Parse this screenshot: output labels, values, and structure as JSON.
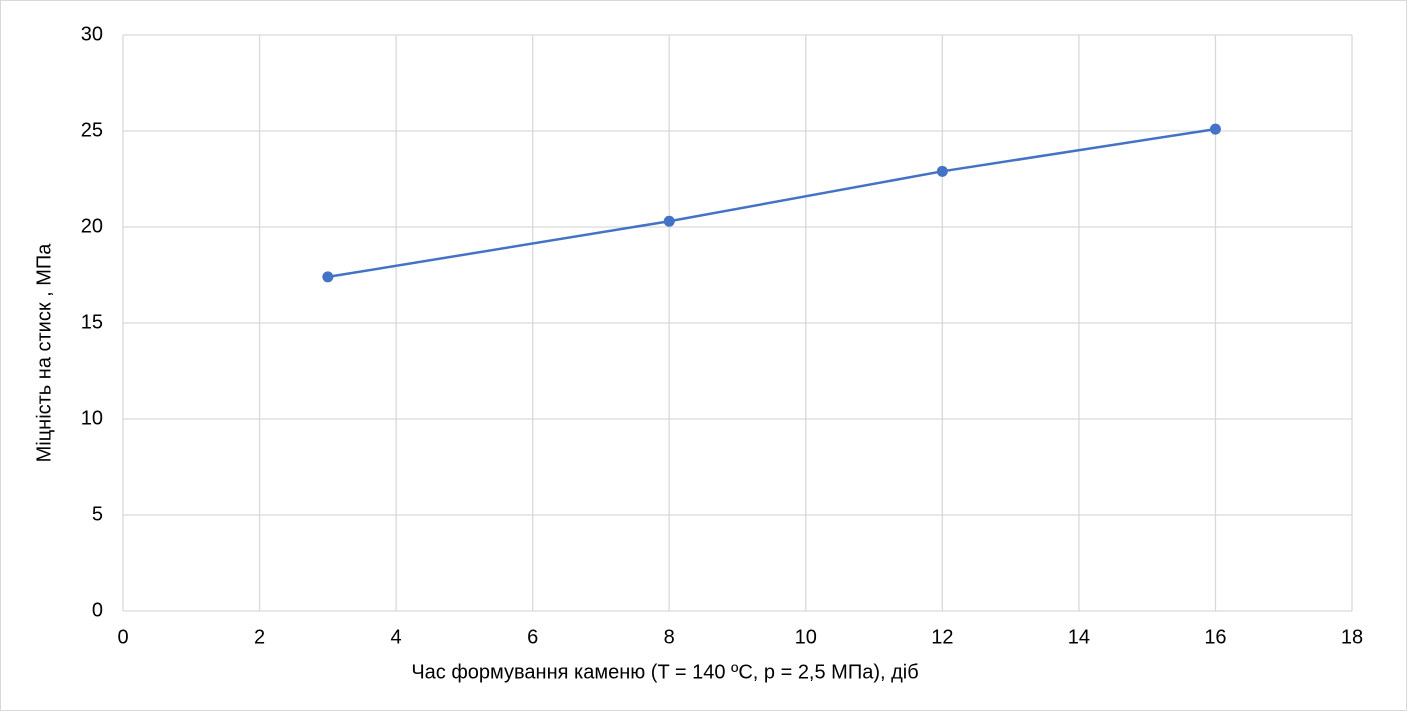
{
  "chart_data": {
    "type": "line",
    "x_label": "Час формування каменю (T = 140 ºC, p = 2,5 МПа), діб",
    "y_label": "Міцність на стиск , МПа",
    "x": [
      3,
      8,
      12,
      16
    ],
    "series": [
      {
        "color": "#4472c4",
        "values": [
          17.4,
          20.3,
          22.9,
          25.1
        ]
      }
    ],
    "xlim": [
      0,
      18
    ],
    "xticks": [
      0,
      2,
      4,
      6,
      8,
      10,
      12,
      14,
      16,
      18
    ],
    "ylim": [
      0,
      30
    ],
    "yticks": [
      0,
      5,
      10,
      15,
      20,
      25,
      30
    ],
    "grid": true
  }
}
